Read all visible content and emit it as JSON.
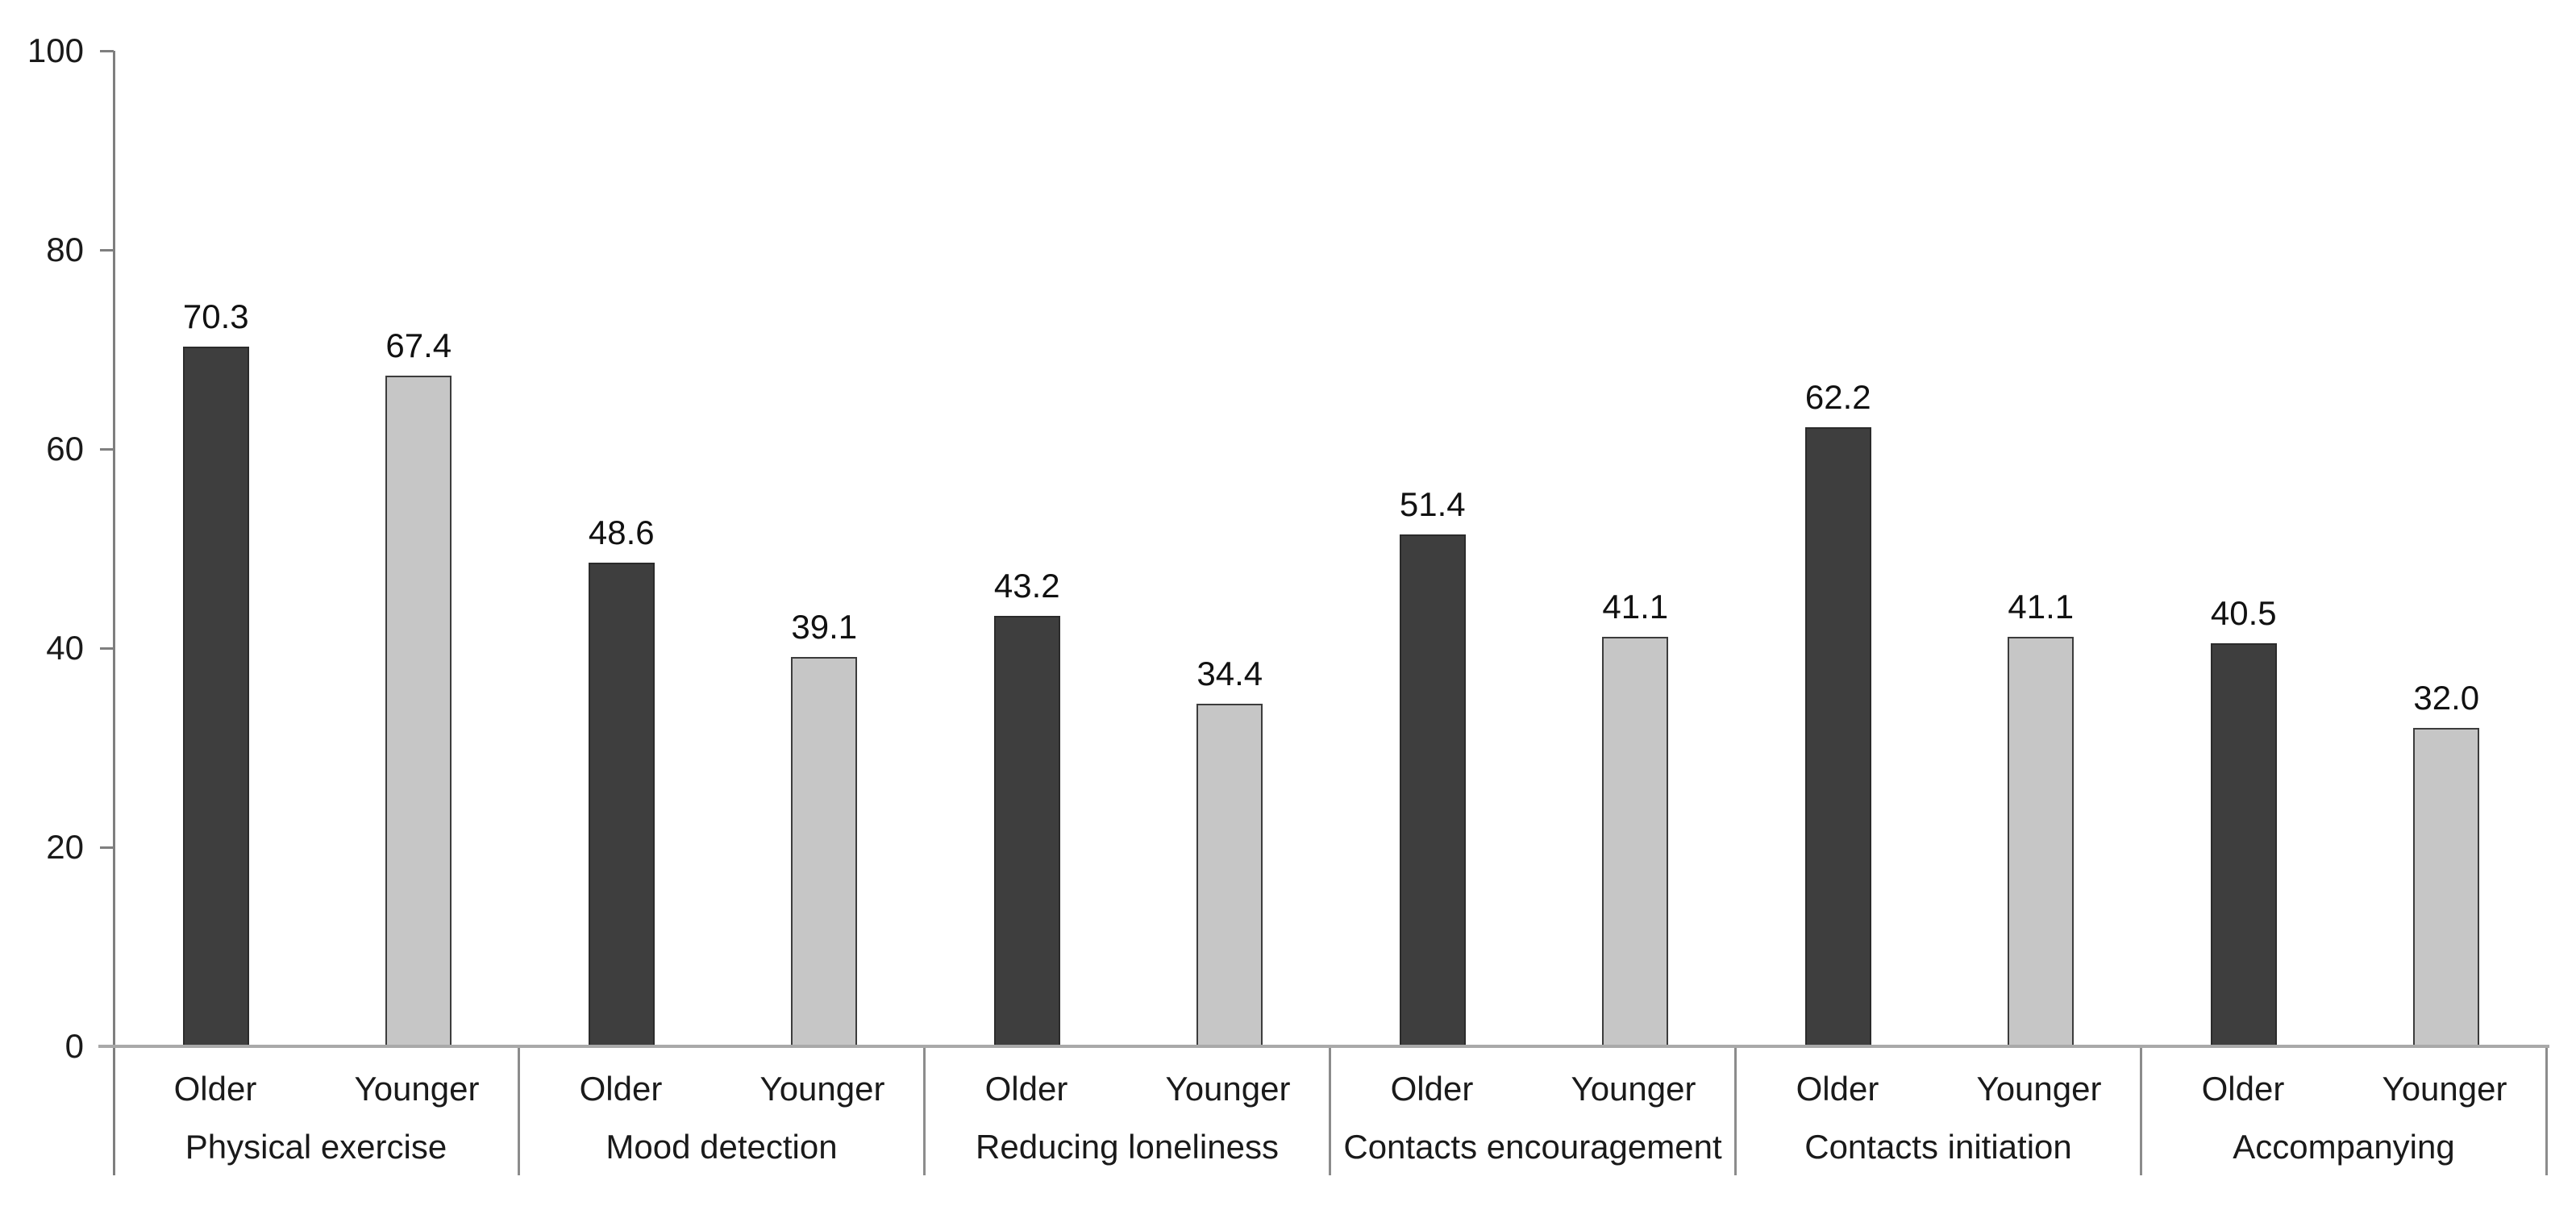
{
  "chart_data": {
    "type": "bar",
    "title": "",
    "categories": [
      "Physical exercise",
      "Mood detection",
      "Reducing loneliness",
      "Contacts encouragement",
      "Contacts initiation",
      "Accompanying"
    ],
    "series": [
      {
        "name": "Older",
        "values": [
          70.3,
          48.6,
          43.2,
          51.4,
          62.2,
          40.5
        ],
        "color": "#3e3e3e",
        "border_color": "#2b2b2b"
      },
      {
        "name": "Younger",
        "values": [
          67.4,
          39.1,
          34.4,
          41.1,
          41.1,
          32.0
        ],
        "color": "#c6c6c6",
        "border_color": "#3c3c3c"
      }
    ],
    "value_labels": [
      [
        "70.3",
        "48.6",
        "43.2",
        "51.4",
        "62.2",
        "40.5"
      ],
      [
        "67.4",
        "39.1",
        "34.4",
        "41.1",
        "41.1",
        "32.0"
      ]
    ],
    "xlabel": "",
    "ylabel": "",
    "ylim": [
      0,
      100
    ],
    "y_ticks": [
      "0",
      "20",
      "40",
      "60",
      "80",
      "100"
    ],
    "grid": "off",
    "legend_position": "none",
    "colors": {
      "axis_line": "#7f7f7f",
      "baseline": "#a9a9a9",
      "separator": "#8c8c8c",
      "text": "#1a1a1a",
      "background": "#ffffff"
    }
  }
}
